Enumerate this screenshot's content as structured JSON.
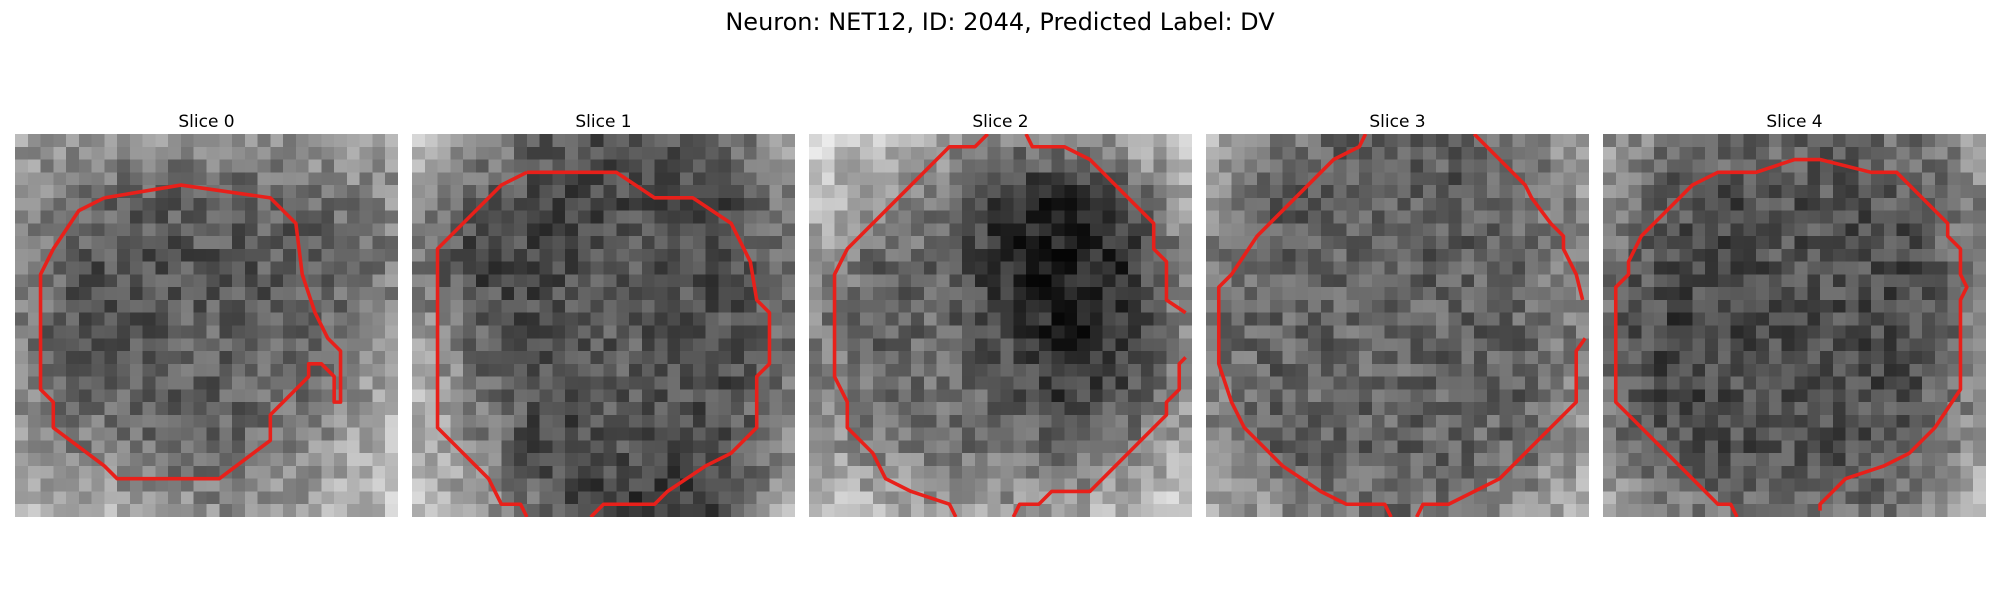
{
  "figure": {
    "title": "Neuron: NET12, ID: 2044, Predicted Label: DV"
  },
  "contour_color": "#e8201a",
  "slices": [
    {
      "label": "Slice 0",
      "seed": 11,
      "bg": 0.72,
      "blob": [
        [
          0.62,
          0.58,
          0.56,
          0.55,
          0.57,
          0.6,
          0.63
        ],
        [
          0.56,
          0.42,
          0.38,
          0.36,
          0.37,
          0.42,
          0.55
        ],
        [
          0.5,
          0.34,
          0.33,
          0.34,
          0.35,
          0.38,
          0.5
        ],
        [
          0.48,
          0.3,
          0.35,
          0.38,
          0.36,
          0.4,
          0.55
        ],
        [
          0.52,
          0.36,
          0.38,
          0.38,
          0.4,
          0.46,
          0.66
        ],
        [
          0.62,
          0.5,
          0.44,
          0.4,
          0.45,
          0.6,
          0.72
        ],
        [
          0.72,
          0.68,
          0.62,
          0.55,
          0.58,
          0.66,
          0.74
        ]
      ]
    },
    {
      "label": "Slice 1",
      "seed": 23,
      "bg": 0.7,
      "blob": [
        [
          0.72,
          0.55,
          0.38,
          0.3,
          0.3,
          0.4,
          0.62
        ],
        [
          0.58,
          0.34,
          0.28,
          0.3,
          0.3,
          0.3,
          0.5
        ],
        [
          0.42,
          0.26,
          0.3,
          0.34,
          0.32,
          0.3,
          0.42
        ],
        [
          0.6,
          0.36,
          0.3,
          0.36,
          0.34,
          0.32,
          0.42
        ],
        [
          0.7,
          0.45,
          0.3,
          0.34,
          0.34,
          0.3,
          0.48
        ],
        [
          0.72,
          0.5,
          0.28,
          0.3,
          0.32,
          0.3,
          0.55
        ],
        [
          0.74,
          0.62,
          0.4,
          0.24,
          0.2,
          0.28,
          0.66
        ]
      ]
    },
    {
      "label": "Slice 2",
      "seed": 37,
      "bg": 0.74,
      "blob": [
        [
          0.8,
          0.74,
          0.62,
          0.48,
          0.5,
          0.62,
          0.74
        ],
        [
          0.74,
          0.56,
          0.5,
          0.2,
          0.14,
          0.3,
          0.62
        ],
        [
          0.58,
          0.4,
          0.38,
          0.18,
          0.1,
          0.18,
          0.5
        ],
        [
          0.5,
          0.36,
          0.42,
          0.28,
          0.12,
          0.2,
          0.52
        ],
        [
          0.54,
          0.42,
          0.44,
          0.38,
          0.22,
          0.28,
          0.55
        ],
        [
          0.64,
          0.5,
          0.46,
          0.44,
          0.4,
          0.48,
          0.68
        ],
        [
          0.78,
          0.7,
          0.62,
          0.6,
          0.62,
          0.7,
          0.78
        ]
      ]
    },
    {
      "label": "Slice 3",
      "seed": 41,
      "bg": 0.7,
      "blob": [
        [
          0.66,
          0.52,
          0.38,
          0.32,
          0.36,
          0.46,
          0.66
        ],
        [
          0.54,
          0.36,
          0.38,
          0.38,
          0.36,
          0.38,
          0.56
        ],
        [
          0.46,
          0.38,
          0.4,
          0.38,
          0.38,
          0.4,
          0.5
        ],
        [
          0.46,
          0.38,
          0.4,
          0.4,
          0.38,
          0.4,
          0.5
        ],
        [
          0.5,
          0.38,
          0.38,
          0.4,
          0.38,
          0.38,
          0.54
        ],
        [
          0.56,
          0.4,
          0.38,
          0.38,
          0.38,
          0.42,
          0.6
        ],
        [
          0.68,
          0.54,
          0.46,
          0.42,
          0.46,
          0.56,
          0.7
        ]
      ]
    },
    {
      "label": "Slice 4",
      "seed": 53,
      "bg": 0.66,
      "blob": [
        [
          0.58,
          0.46,
          0.42,
          0.4,
          0.4,
          0.44,
          0.58
        ],
        [
          0.52,
          0.34,
          0.3,
          0.32,
          0.32,
          0.34,
          0.52
        ],
        [
          0.44,
          0.28,
          0.3,
          0.32,
          0.3,
          0.3,
          0.5
        ],
        [
          0.4,
          0.26,
          0.3,
          0.3,
          0.3,
          0.3,
          0.52
        ],
        [
          0.42,
          0.28,
          0.3,
          0.3,
          0.3,
          0.32,
          0.56
        ],
        [
          0.52,
          0.32,
          0.32,
          0.32,
          0.32,
          0.38,
          0.62
        ],
        [
          0.66,
          0.52,
          0.44,
          0.4,
          0.42,
          0.52,
          0.7
        ]
      ]
    }
  ]
}
